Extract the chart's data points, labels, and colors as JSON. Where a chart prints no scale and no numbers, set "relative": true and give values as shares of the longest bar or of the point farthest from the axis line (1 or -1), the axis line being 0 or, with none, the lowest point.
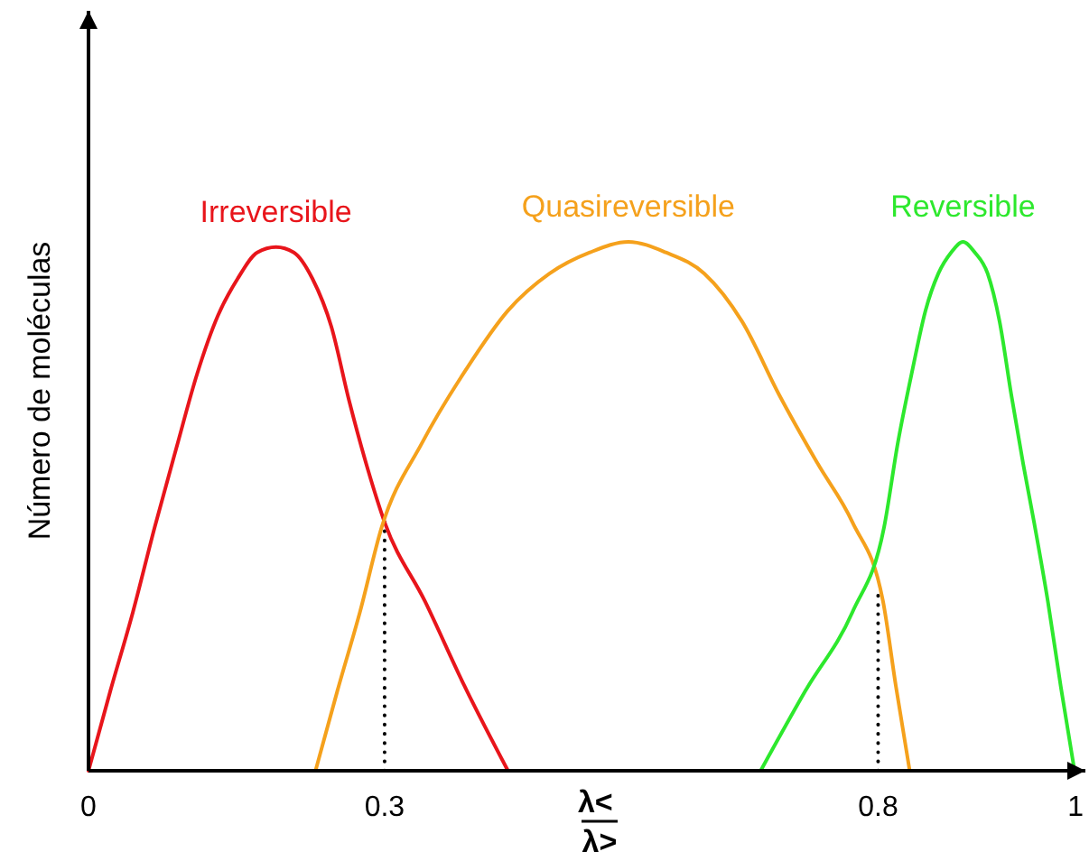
{
  "chart_data": {
    "type": "line",
    "xlabel": "λ<\nλ>",
    "ylabel": "Número de moléculas",
    "relative": true,
    "xlim": [
      0,
      1.01
    ],
    "xticks": [
      0,
      0.3,
      0.8,
      1
    ],
    "series": [
      {
        "name": "Irreversible",
        "color": "#e8151b",
        "x": [
          0,
          0.022,
          0.045,
          0.067,
          0.089,
          0.11,
          0.131,
          0.151,
          0.171,
          0.19,
          0.208,
          0.227,
          0.246,
          0.264,
          0.283,
          0.3,
          0.341,
          0.381,
          0.425
        ],
        "values": [
          0,
          0.15,
          0.3,
          0.46,
          0.61,
          0.75,
          0.86,
          0.93,
          0.98,
          0.99,
          0.98,
          0.93,
          0.84,
          0.7,
          0.57,
          0.47,
          0.32,
          0.16,
          0
        ]
      },
      {
        "name": "Quasireversible",
        "color": "#f5a11c",
        "x": [
          0.23,
          0.252,
          0.275,
          0.297,
          0.338,
          0.383,
          0.425,
          0.467,
          0.508,
          0.547,
          0.585,
          0.624,
          0.662,
          0.7,
          0.739,
          0.774,
          0.805,
          0.818,
          0.832
        ],
        "values": [
          0,
          0.15,
          0.3,
          0.46,
          0.62,
          0.76,
          0.87,
          0.94,
          0.98,
          1,
          0.98,
          0.94,
          0.85,
          0.71,
          0.58,
          0.47,
          0.32,
          0.16,
          0
        ]
      },
      {
        "name": "Reversible",
        "color": "#2de82d",
        "x": [
          0.681,
          0.726,
          0.774,
          0.806,
          0.82,
          0.835,
          0.848,
          0.861,
          0.874,
          0.886,
          0.898,
          0.911,
          0.923,
          0.935,
          0.947,
          0.958,
          0.972,
          0.985,
          0.999
        ],
        "values": [
          0,
          0.15,
          0.3,
          0.46,
          0.62,
          0.76,
          0.87,
          0.94,
          0.98,
          1,
          0.98,
          0.94,
          0.85,
          0.71,
          0.58,
          0.47,
          0.32,
          0.16,
          0
        ]
      }
    ],
    "ref_lines": [
      {
        "axis": "x",
        "value": 0.3,
        "color": "#000000",
        "line_style": "dotted"
      },
      {
        "axis": "x",
        "value": 0.8,
        "color": "#000000",
        "line_style": "dotted"
      }
    ]
  }
}
